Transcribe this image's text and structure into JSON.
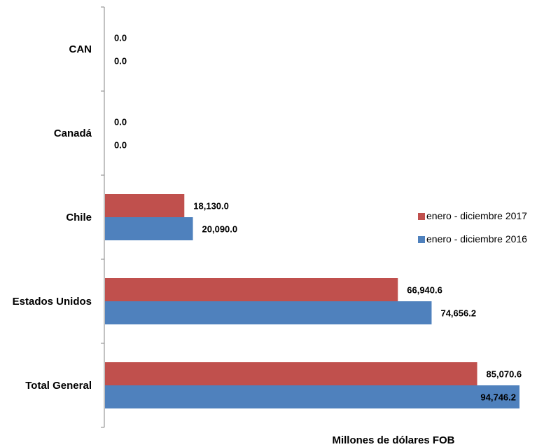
{
  "chart_data": {
    "type": "bar",
    "orientation": "horizontal",
    "categories": [
      "CAN",
      "Canadá",
      "Chile",
      "Estados Unidos",
      "Total General"
    ],
    "series": [
      {
        "name": "enero - diciembre 2017",
        "values": [
          0.0,
          0.0,
          18130.0,
          66940.6,
          85070.6
        ],
        "labels": [
          "0.0",
          "0.0",
          "18,130.0",
          "66,940.6",
          "85,070.6"
        ],
        "color": "#c0504d"
      },
      {
        "name": "enero - diciembre 2016",
        "values": [
          0.0,
          0.0,
          20090.0,
          74656.2,
          94746.2
        ],
        "labels": [
          "0.0",
          "0.0",
          "20,090.0",
          "74,656.2",
          "94,746.2"
        ],
        "color": "#4f81bd"
      }
    ],
    "title": "",
    "xlabel": "Millones de dólares FOB",
    "ylabel": "",
    "xlim": [
      0,
      94746.2
    ],
    "legend_position": "right",
    "grid": false
  }
}
